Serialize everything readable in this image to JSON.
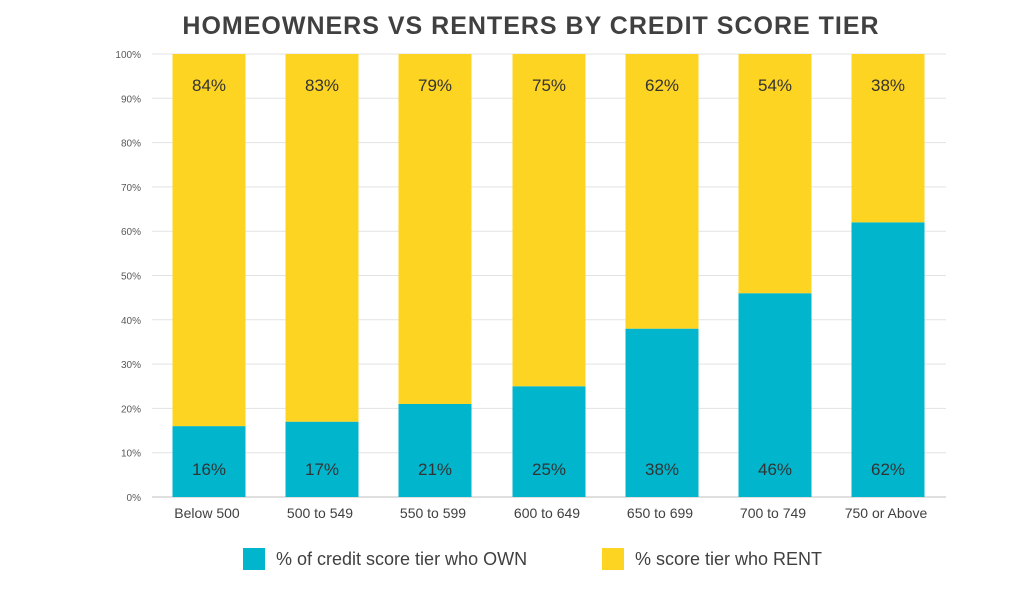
{
  "chart_data": {
    "type": "bar",
    "stacked": true,
    "title": "HOMEOWNERS VS RENTERS BY CREDIT SCORE TIER",
    "xlabel": "",
    "ylabel": "",
    "ylim": [
      0,
      100
    ],
    "y_ticks": [
      "0%",
      "10%",
      "20%",
      "30%",
      "40%",
      "50%",
      "60%",
      "70%",
      "80%",
      "90%",
      "100%"
    ],
    "grid": true,
    "legend_position": "bottom",
    "categories": [
      "Below 500",
      "500 to 549",
      "550 to 599",
      "600 to 649",
      "650 to 699",
      "700 to 749",
      "750 or Above"
    ],
    "series": [
      {
        "name": "% of credit score tier who OWN",
        "color": "#00B5CC",
        "values": [
          16,
          17,
          21,
          25,
          38,
          46,
          62
        ],
        "labels": [
          "16%",
          "17%",
          "21%",
          "25%",
          "38%",
          "46%",
          "62%"
        ]
      },
      {
        "name": "% score tier who RENT",
        "color": "#FDD421",
        "values": [
          84,
          83,
          79,
          75,
          62,
          54,
          38
        ],
        "labels": [
          "84%",
          "83%",
          "79%",
          "75%",
          "62%",
          "54%",
          "38%"
        ]
      }
    ]
  }
}
